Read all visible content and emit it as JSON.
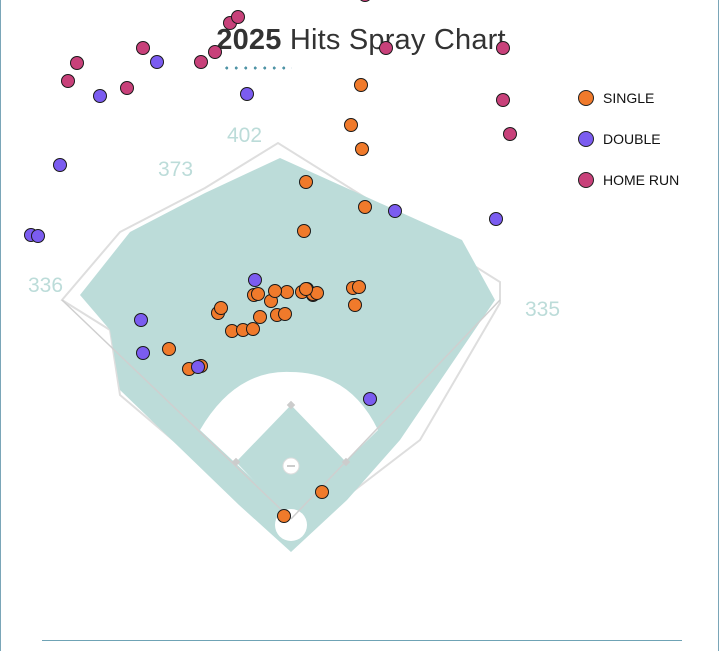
{
  "header": {
    "year": "2025",
    "title": "Hits Spray Chart"
  },
  "colors": {
    "single": "#f07a2b",
    "double": "#7b5cf0",
    "home_run": "#c8417a",
    "grass": "#bcdcd9",
    "wall_label": "#bcdcd9"
  },
  "chart_data": {
    "type": "scatter",
    "title": "2025 Hits Spray Chart",
    "fence_distances": {
      "left_field": "336",
      "left_center": "373",
      "center_field": "402",
      "right_field": "335"
    },
    "legend": [
      {
        "key": "single",
        "label": "SINGLE"
      },
      {
        "key": "double",
        "label": "DOUBLE"
      },
      {
        "key": "home_run",
        "label": "HOME RUN"
      }
    ],
    "series": [
      {
        "name": "SINGLE",
        "key": "single",
        "points": [
          [
            -7,
            16
          ],
          [
            31,
            40
          ],
          [
            -122,
            183
          ],
          [
            -102,
            163
          ],
          [
            -90,
            166
          ],
          [
            -59,
            201
          ],
          [
            -73,
            219
          ],
          [
            -70,
            224
          ],
          [
            -48,
            202
          ],
          [
            -38,
            203
          ],
          [
            -31,
            215
          ],
          [
            -14,
            217
          ],
          [
            -6,
            218
          ],
          [
            -20,
            231
          ],
          [
            -37,
            237
          ],
          [
            -33,
            238
          ],
          [
            -4,
            240
          ],
          [
            -16,
            241
          ],
          [
            11,
            240
          ],
          [
            16,
            243
          ],
          [
            22,
            237
          ],
          [
            22,
            238
          ],
          [
            26,
            239
          ],
          [
            15,
            243
          ],
          [
            62,
            244
          ],
          [
            68,
            245
          ],
          [
            64,
            227
          ],
          [
            13,
            301
          ],
          [
            74,
            325
          ],
          [
            15,
            350
          ],
          [
            71,
            383
          ],
          [
            60,
            407
          ],
          [
            70,
            447
          ]
        ]
      },
      {
        "name": "DOUBLE",
        "key": "double",
        "points": [
          [
            -93,
            165
          ],
          [
            -36,
            252
          ],
          [
            -148,
            179
          ],
          [
            -150,
            212
          ],
          [
            -260,
            297
          ],
          [
            -253,
            296
          ],
          [
            -231,
            367
          ],
          [
            -191,
            436
          ],
          [
            -134,
            470
          ],
          [
            -62,
            545
          ],
          [
            -44,
            438
          ],
          [
            104,
            321
          ],
          [
            205,
            313
          ],
          [
            79,
            133
          ]
        ]
      },
      {
        "name": "HOME RUN",
        "key": "home_run",
        "points": [
          [
            -223,
            451
          ],
          [
            -214,
            469
          ],
          [
            -164,
            444
          ],
          [
            -148,
            484
          ],
          [
            -90,
            470
          ],
          [
            -76,
            480
          ],
          [
            -61,
            509
          ],
          [
            -53,
            515
          ],
          [
            15,
            567
          ],
          [
            74,
            537
          ],
          [
            95,
            484
          ],
          [
            125,
            544
          ],
          [
            212,
            484
          ],
          [
            212,
            432
          ],
          [
            219,
            398
          ]
        ]
      }
    ]
  }
}
